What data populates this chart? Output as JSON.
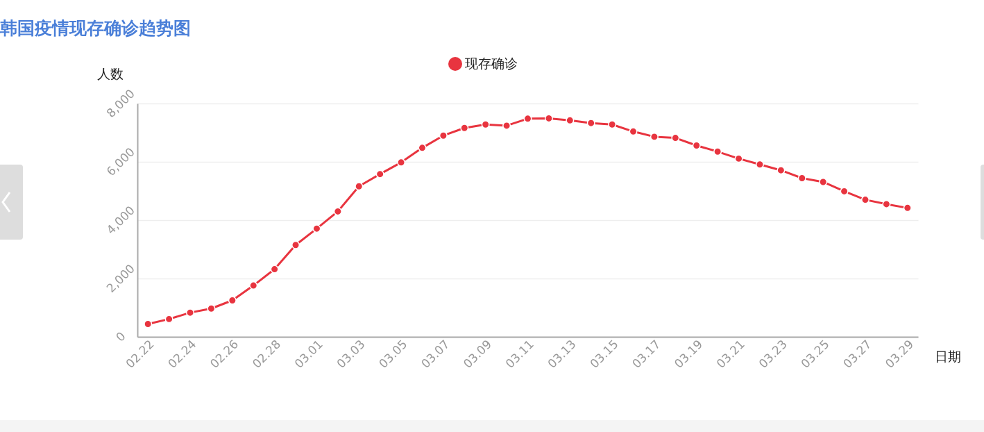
{
  "chart_data": {
    "type": "line",
    "title": "韩国疫情现存确诊趋势图",
    "xlabel": "日期",
    "ylabel": "人数",
    "categories": [
      "02.22",
      null,
      "02.24",
      null,
      "02.26",
      null,
      "02.28",
      null,
      "03.01",
      null,
      "03.03",
      null,
      "03.05",
      null,
      "03.07",
      null,
      "03.09",
      null,
      "03.11",
      null,
      "03.13",
      null,
      "03.15",
      null,
      "03.17",
      null,
      "03.19",
      null,
      "03.21",
      null,
      "03.23",
      null,
      "03.25",
      null,
      "03.27",
      null,
      "03.29"
    ],
    "series": [
      {
        "name": "现存确诊",
        "color": "#e8343f",
        "values": [
          440,
          610,
          830,
          970,
          1250,
          1760,
          2320,
          3150,
          3710,
          4300,
          5160,
          5580,
          5980,
          6480,
          6900,
          7160,
          7280,
          7240,
          7480,
          7490,
          7420,
          7330,
          7280,
          7040,
          6860,
          6820,
          6560,
          6350,
          6110,
          5910,
          5710,
          5440,
          5310,
          4990,
          4700,
          4550,
          4420
        ]
      }
    ],
    "ylim": [
      0,
      8000
    ],
    "yticks": [
      0,
      {
        "value": 2000,
        "label": "2,000"
      },
      {
        "value": 4000,
        "label": "4,000"
      },
      {
        "value": 6000,
        "label": "6,000"
      },
      {
        "value": 8000,
        "label": "8,000"
      }
    ],
    "grid": "y",
    "legend": "top",
    "marker": "circle",
    "line_style": "solid"
  }
}
